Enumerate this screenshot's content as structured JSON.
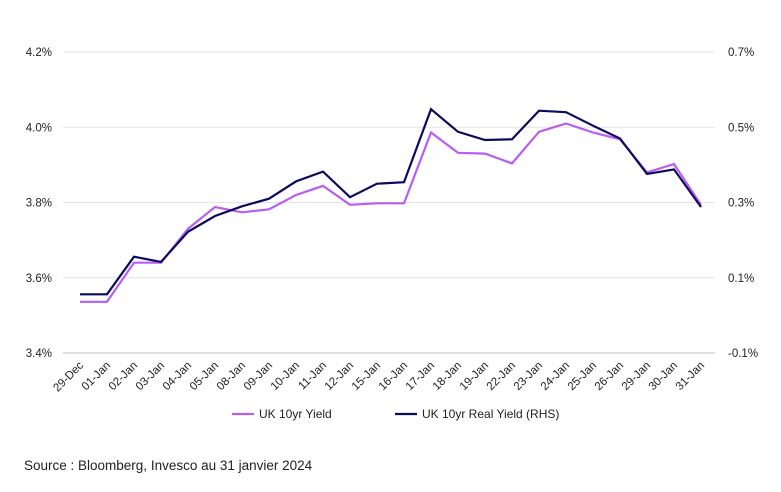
{
  "chart_data": {
    "type": "line",
    "title": "",
    "categories": [
      "29-Dec",
      "01-Jan",
      "02-Jan",
      "03-Jan",
      "04-Jan",
      "05-Jan",
      "08-Jan",
      "09-Jan",
      "10-Jan",
      "11-Jan",
      "12-Jan",
      "15-Jan",
      "16-Jan",
      "17-Jan",
      "18-Jan",
      "19-Jan",
      "22-Jan",
      "23-Jan",
      "24-Jan",
      "25-Jan",
      "26-Jan",
      "29-Jan",
      "30-Jan",
      "31-Jan"
    ],
    "left_axis": {
      "ylim": [
        3.4,
        4.2
      ],
      "ticks": [
        3.4,
        3.6,
        3.8,
        4.0,
        4.2
      ],
      "tick_labels": [
        "3.4%",
        "3.6%",
        "3.8%",
        "4.0%",
        "4.2%"
      ]
    },
    "right_axis": {
      "ylim": [
        -0.1,
        0.7
      ],
      "ticks": [
        -0.1,
        0.1,
        0.3,
        0.5,
        0.7
      ],
      "tick_labels": [
        "-0.1%",
        "0.1%",
        "0.3%",
        "0.5%",
        "0.7%"
      ]
    },
    "series": [
      {
        "name": "UK 10yr Yield",
        "axis": "left",
        "color": "#b85ef0",
        "values": [
          3.536,
          3.536,
          3.64,
          3.64,
          3.73,
          3.788,
          3.774,
          3.782,
          3.82,
          3.844,
          3.794,
          3.798,
          3.798,
          3.986,
          3.932,
          3.93,
          3.904,
          3.988,
          4.01,
          3.986,
          3.968,
          3.88,
          3.902,
          3.794
        ]
      },
      {
        "name": "UK 10yr Real Yield (RHS)",
        "axis": "right",
        "color": "#0d0a5e",
        "values": [
          0.056,
          0.056,
          0.156,
          0.142,
          0.222,
          0.264,
          0.29,
          0.31,
          0.356,
          0.382,
          0.314,
          0.35,
          0.354,
          0.548,
          0.488,
          0.466,
          0.468,
          0.544,
          0.54,
          0.504,
          0.47,
          0.376,
          0.388,
          0.288
        ]
      }
    ],
    "legend": [
      "UK 10yr Yield",
      "UK 10yr Real Yield (RHS)"
    ],
    "grid": true
  },
  "source": "Source : Bloomberg, Invesco au 31 janvier 2024"
}
